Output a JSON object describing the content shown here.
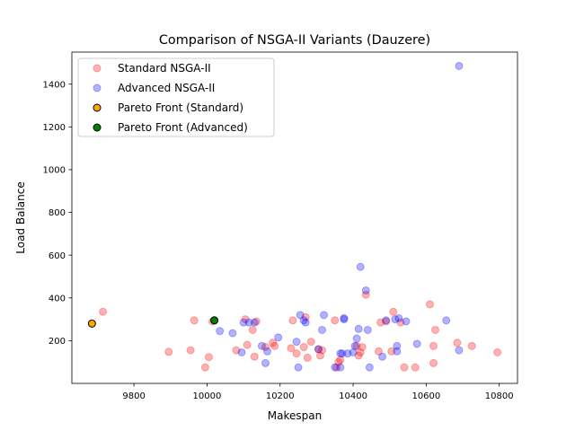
{
  "chart_data": {
    "type": "scatter",
    "title": "Comparison of NSGA-II Variants (Dauzere)",
    "xlabel": "Makespan",
    "ylabel": "Load Balance",
    "xlim": [
      9630,
      10850
    ],
    "ylim": [
      0,
      1550
    ],
    "xticks": [
      9800,
      10000,
      10200,
      10400,
      10600,
      10800
    ],
    "yticks": [
      200,
      400,
      600,
      800,
      1000,
      1200,
      1400
    ],
    "grid": false,
    "legend_position": "top-left",
    "series": [
      {
        "name": "Standard NSGA-II",
        "color": "#ff0000",
        "alpha": 0.3,
        "x": [
          9715,
          9895,
          9955,
          9965,
          9995,
          10005,
          10015,
          10080,
          10105,
          10110,
          10125,
          10130,
          10135,
          10160,
          10180,
          10185,
          10230,
          10235,
          10245,
          10265,
          10270,
          10275,
          10285,
          10305,
          10310,
          10315,
          10350,
          10355,
          10360,
          10365,
          10410,
          10415,
          10420,
          10425,
          10435,
          10470,
          10475,
          10490,
          10505,
          10510,
          10530,
          10540,
          10570,
          10610,
          10620,
          10620,
          10625,
          10685,
          10725,
          10795
        ],
        "y": [
          335,
          148,
          155,
          295,
          75,
          123,
          290,
          155,
          300,
          180,
          250,
          125,
          290,
          170,
          190,
          175,
          165,
          295,
          140,
          170,
          310,
          120,
          195,
          160,
          130,
          155,
          295,
          75,
          100,
          110,
          175,
          130,
          145,
          170,
          415,
          150,
          285,
          290,
          150,
          335,
          285,
          75,
          75,
          370,
          175,
          95,
          250,
          190,
          175,
          145
        ]
      },
      {
        "name": "Advanced NSGA-II",
        "color": "#0000ff",
        "alpha": 0.3,
        "x": [
          10035,
          10070,
          10095,
          10100,
          10115,
          10130,
          10150,
          10160,
          10165,
          10195,
          10245,
          10250,
          10255,
          10265,
          10270,
          10305,
          10315,
          10320,
          10350,
          10365,
          10365,
          10370,
          10375,
          10375,
          10385,
          10400,
          10405,
          10410,
          10415,
          10420,
          10435,
          10440,
          10445,
          10480,
          10490,
          10515,
          10520,
          10520,
          10525,
          10545,
          10575,
          10655,
          10690,
          10690
        ],
        "y": [
          245,
          235,
          145,
          285,
          285,
          285,
          175,
          95,
          150,
          215,
          195,
          75,
          320,
          295,
          285,
          160,
          250,
          320,
          75,
          75,
          140,
          140,
          305,
          300,
          140,
          145,
          175,
          210,
          255,
          545,
          435,
          250,
          75,
          125,
          295,
          300,
          175,
          150,
          305,
          290,
          185,
          295,
          1485,
          155
        ]
      },
      {
        "name": "Pareto Front (Standard)",
        "color": "#ffa500",
        "alpha": 1,
        "x": [
          9685
        ],
        "y": [
          280
        ]
      },
      {
        "name": "Pareto Front (Advanced)",
        "color": "#008000",
        "alpha": 1,
        "x": [
          10020
        ],
        "y": [
          295
        ]
      }
    ]
  }
}
